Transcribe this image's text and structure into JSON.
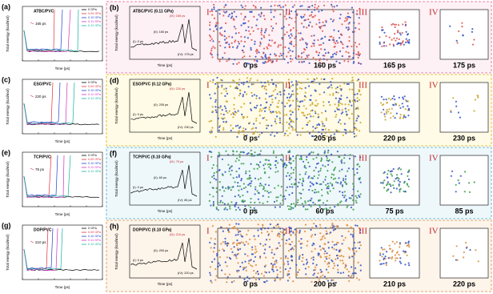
{
  "rows": [
    {
      "left": {
        "label": "(a)",
        "title": "ATBC/PVC",
        "annotation": "165 ps",
        "ylabel": "Total energy (kcal/mol)",
        "xlabel": "Time (ps)",
        "legend": [
          {
            "name": "0 GPa",
            "color": "#000000"
          },
          {
            "name": "0.09 GPa",
            "color": "#e0303a"
          },
          {
            "name": "0.10 GPa",
            "color": "#2040d0"
          },
          {
            "name": "0.11 GPa",
            "color": "#d030c0"
          },
          {
            "name": "0.12 GPa",
            "color": "#10b0a0"
          }
        ]
      },
      "right": {
        "label": "(b)",
        "title": "ATBC/PVC (0.11 GPa)",
        "ylabel": "Total energy (kcal/mol)",
        "xlabel": "Time (ps)",
        "points": [
          "(I): 0 ps",
          "(II): 160 ps",
          "(III): 165 ps",
          "(IV): 175 ps"
        ],
        "snapshots": [
          {
            "numeral": "I",
            "time": "0 ps"
          },
          {
            "numeral": "II",
            "time": "160 ps"
          },
          {
            "numeral": "III",
            "time": "165 ps"
          },
          {
            "numeral": "IV",
            "time": "175 ps"
          }
        ]
      },
      "frame_color": "#e06090",
      "tint": "#fdf1f5",
      "molecule_color": "#d9534f"
    },
    {
      "left": {
        "label": "(c)",
        "title": "ESO/PVC",
        "annotation": "220 ps",
        "ylabel": "Total energy (kcal/mol)",
        "xlabel": "Time (ps)",
        "legend": [
          {
            "name": "0 GPa",
            "color": "#000000"
          },
          {
            "name": "0.09 GPa",
            "color": "#e0303a"
          },
          {
            "name": "0.10 GPa",
            "color": "#2040d0"
          },
          {
            "name": "0.11 GPa",
            "color": "#d030c0"
          },
          {
            "name": "0.12 GPa",
            "color": "#10b0a0"
          }
        ]
      },
      "right": {
        "label": "(d)",
        "title": "ESO/PVC (0.12 GPa)",
        "ylabel": "Total energy (kcal/mol)",
        "xlabel": "Time (ps)",
        "points": [
          "(I): 0 ps",
          "(II): 205 ps",
          "(III): 220 ps",
          "(IV): 230 ps"
        ],
        "snapshots": [
          {
            "numeral": "I",
            "time": "0 ps"
          },
          {
            "numeral": "II",
            "time": "205 ps"
          },
          {
            "numeral": "III",
            "time": "220 ps"
          },
          {
            "numeral": "IV",
            "time": "230 ps"
          }
        ]
      },
      "frame_color": "#d8b400",
      "tint": "#fffbe6",
      "molecule_color": "#c9a227"
    },
    {
      "left": {
        "label": "(e)",
        "title": "TCP/PVC",
        "annotation": "75 ps",
        "ylabel": "Total energy (kcal/mol)",
        "xlabel": "Time (ps)",
        "legend": [
          {
            "name": "0 GPa",
            "color": "#000000"
          },
          {
            "name": "0.09 GPa",
            "color": "#e0303a"
          },
          {
            "name": "0.10 GPa",
            "color": "#2040d0"
          },
          {
            "name": "0.11 GPa",
            "color": "#d030c0"
          },
          {
            "name": "0.12 GPa",
            "color": "#10b0a0"
          }
        ]
      },
      "right": {
        "label": "(f)",
        "title": "TCP/PVC (0.10 GPa)",
        "ylabel": "Total energy (kcal/mol)",
        "xlabel": "Time (ps)",
        "points": [
          "(I): 0 ps",
          "(II): 60 ps",
          "(III): 75 ps",
          "(IV): 85 ps"
        ],
        "snapshots": [
          {
            "numeral": "I",
            "time": "0 ps"
          },
          {
            "numeral": "II",
            "time": "60 ps"
          },
          {
            "numeral": "III",
            "time": "75 ps"
          },
          {
            "numeral": "IV",
            "time": "85 ps"
          }
        ]
      },
      "frame_color": "#40a8d0",
      "tint": "#eef8fb",
      "molecule_color": "#3a9a4a"
    },
    {
      "left": {
        "label": "(g)",
        "title": "DOP/PVC",
        "annotation": "210 ps",
        "ylabel": "Total energy (kcal/mol)",
        "xlabel": "Time (ps)",
        "legend": [
          {
            "name": "0 GPa",
            "color": "#000000"
          },
          {
            "name": "0.09 GPa",
            "color": "#e0303a"
          },
          {
            "name": "0.10 GPa",
            "color": "#2040d0"
          },
          {
            "name": "0.11 GPa",
            "color": "#d030c0"
          },
          {
            "name": "0.12 GPa",
            "color": "#10b0a0"
          }
        ]
      },
      "right": {
        "label": "(h)",
        "title": "DOP/PVC (0.10 GPa)",
        "ylabel": "Total energy (kcal/mol)",
        "xlabel": "Time (ps)",
        "points": [
          "(I): 0 ps",
          "(II): 200 ps",
          "(III): 210 ps",
          "(IV): 220 ps"
        ],
        "snapshots": [
          {
            "numeral": "I",
            "time": "0 ps"
          },
          {
            "numeral": "II",
            "time": "200 ps"
          },
          {
            "numeral": "III",
            "time": "210 ps"
          },
          {
            "numeral": "IV",
            "time": "220 ps"
          }
        ]
      },
      "frame_color": "#d88a40",
      "tint": "#fdf4ea",
      "molecule_color": "#d98a3a"
    }
  ]
}
